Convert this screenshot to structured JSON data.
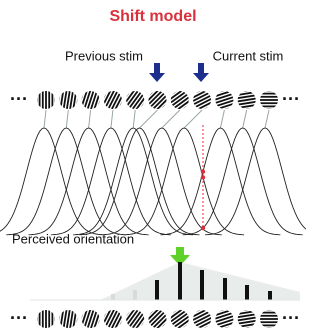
{
  "title": "Shift model",
  "labels": {
    "previous_stim": "Previous stim",
    "current_stim": "Current stim",
    "perceived_orientation": "Perceived orientation"
  },
  "top_row": {
    "left_ellipsis": "···",
    "right_ellipsis": "···"
  },
  "bottom_row": {
    "left_ellipsis": "···",
    "right_ellipsis": "···"
  }
}
